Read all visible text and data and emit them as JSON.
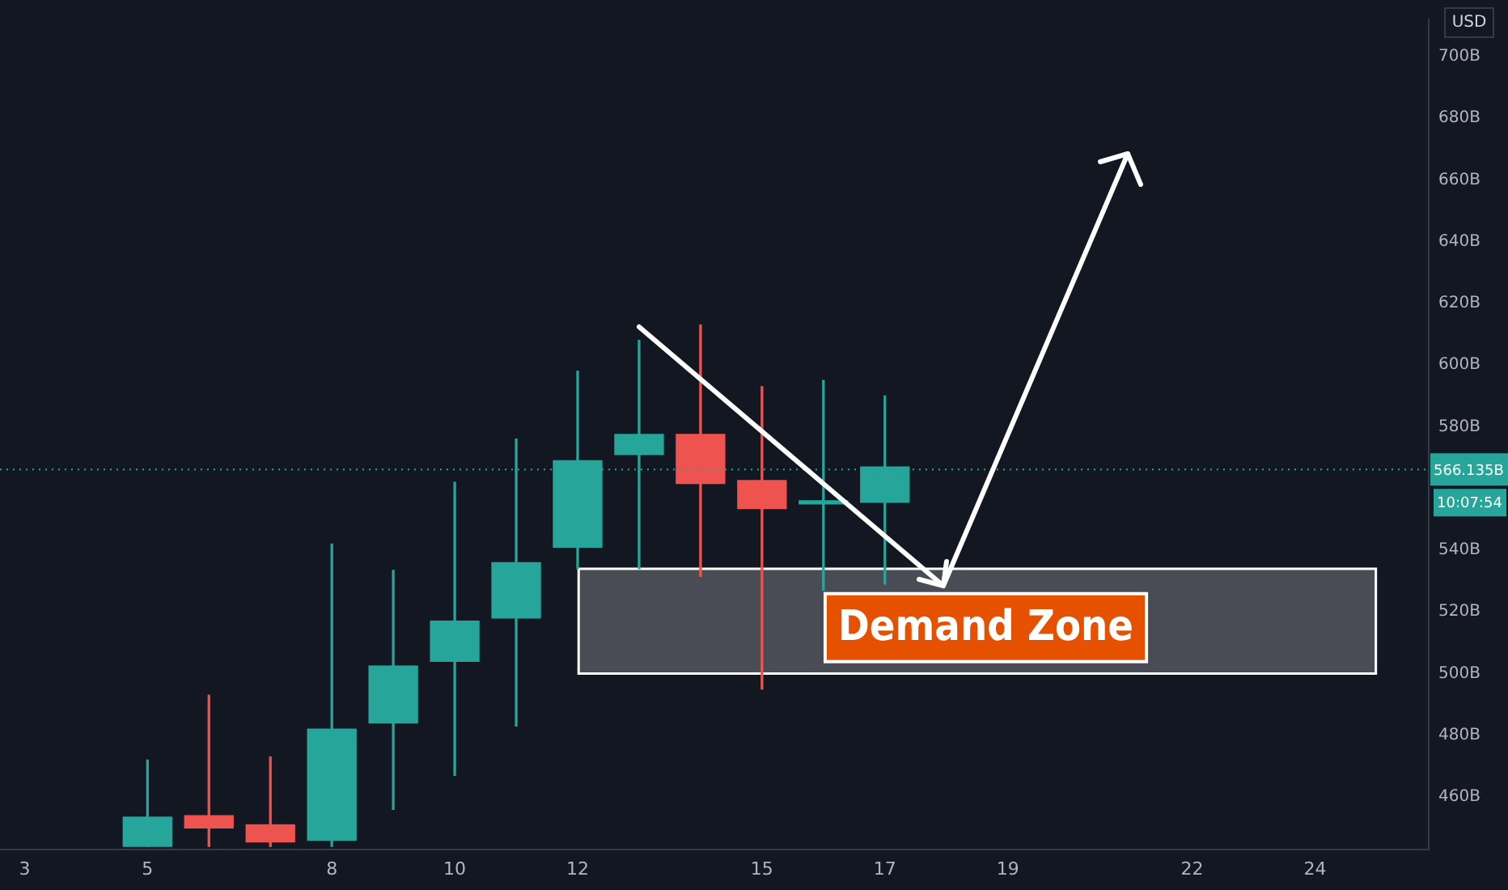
{
  "chart_data": {
    "type": "candlestick",
    "x": [
      5,
      6,
      7,
      8,
      9,
      10,
      11,
      12,
      13,
      14,
      15,
      16,
      17
    ],
    "ohlc": [
      [
        444,
        472,
        444,
        453.5
      ],
      [
        454,
        493,
        444,
        450
      ],
      [
        451,
        473,
        444,
        445.5
      ],
      [
        446,
        542,
        444,
        482
      ],
      [
        484,
        533.5,
        456,
        502.5
      ],
      [
        504,
        562,
        467,
        517
      ],
      [
        518,
        576,
        483,
        536
      ],
      [
        541,
        598,
        534,
        569
      ],
      [
        571,
        608,
        534,
        577.5
      ],
      [
        577.5,
        613,
        531.5,
        561.6
      ],
      [
        562.6,
        593,
        495,
        553.5
      ],
      [
        555,
        595,
        527,
        556
      ],
      [
        555.5,
        590,
        529,
        567
      ]
    ],
    "colors": [
      "#26a69a",
      "#ef5350",
      "#ef5350",
      "#26a69a",
      "#26a69a",
      "#26a69a",
      "#26a69a",
      "#26a69a",
      "#26a69a",
      "#ef5350",
      "#ef5350",
      "#26a69a",
      "#26a69a"
    ],
    "xlim": [
      2.6,
      25.85
    ],
    "xticks": [
      3,
      5,
      8,
      10,
      12,
      15,
      17,
      19,
      22,
      24
    ],
    "ylim": [
      443,
      712
    ],
    "yticks": [
      {
        "value": 460,
        "label": "460B"
      },
      {
        "value": 480,
        "label": "480B"
      },
      {
        "value": 500,
        "label": "500B"
      },
      {
        "value": 520,
        "label": "520B"
      },
      {
        "value": 540,
        "label": "540B"
      },
      {
        "value": 580,
        "label": "580B"
      },
      {
        "value": 600,
        "label": "600B"
      },
      {
        "value": 620,
        "label": "620B"
      },
      {
        "value": 640,
        "label": "640B"
      },
      {
        "value": 660,
        "label": "660B"
      },
      {
        "value": 680,
        "label": "680B"
      },
      {
        "value": 700,
        "label": "700B"
      }
    ],
    "ref_lines": [
      {
        "axis": "y",
        "value": 566.135,
        "label": "566.135B",
        "color": "#26a69a",
        "line_style": "dotted"
      }
    ],
    "bands": [
      {
        "axis": "y",
        "from": 500,
        "to": 534,
        "label": "Demand Zone",
        "color": "#4a4c55"
      }
    ],
    "annotations": [
      "10:07:54",
      "USD"
    ],
    "grid": false,
    "legend": false
  }
}
